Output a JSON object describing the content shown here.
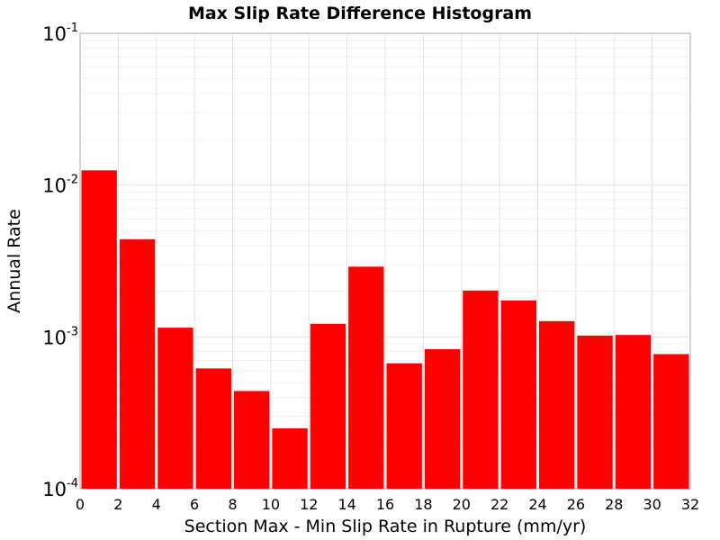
{
  "chart_data": {
    "type": "bar",
    "title": "Max Slip Rate Difference Histogram",
    "xlabel": "Section Max - Min Slip Rate in Rupture (mm/yr)",
    "ylabel": "Annual Rate",
    "xlim": [
      0,
      32
    ],
    "ylim": [
      0.0001,
      0.1
    ],
    "yscale": "log",
    "bar_width": 2,
    "bar_color": "#ff0000",
    "grid": true,
    "x_ticks": [
      "0",
      "2",
      "4",
      "6",
      "8",
      "10",
      "12",
      "14",
      "16",
      "18",
      "20",
      "22",
      "24",
      "26",
      "28",
      "30",
      "32"
    ],
    "y_ticks": [
      {
        "base": "10",
        "exp": "-1"
      },
      {
        "base": "10",
        "exp": "-2"
      },
      {
        "base": "10",
        "exp": "-3"
      },
      {
        "base": "10",
        "exp": "-4"
      }
    ],
    "bars": [
      {
        "x": 1,
        "value": 0.0125
      },
      {
        "x": 3,
        "value": 0.0044
      },
      {
        "x": 5,
        "value": 0.00115
      },
      {
        "x": 7,
        "value": 0.00062
      },
      {
        "x": 9,
        "value": 0.00044
      },
      {
        "x": 11,
        "value": 0.00025
      },
      {
        "x": 13,
        "value": 0.00122
      },
      {
        "x": 15,
        "value": 0.0029
      },
      {
        "x": 17,
        "value": 0.00067
      },
      {
        "x": 19,
        "value": 0.00083
      },
      {
        "x": 21,
        "value": 0.00202
      },
      {
        "x": 23,
        "value": 0.00174
      },
      {
        "x": 25,
        "value": 0.00127
      },
      {
        "x": 27,
        "value": 0.00102
      },
      {
        "x": 29,
        "value": 0.00103
      },
      {
        "x": 31,
        "value": 0.00077
      }
    ]
  }
}
